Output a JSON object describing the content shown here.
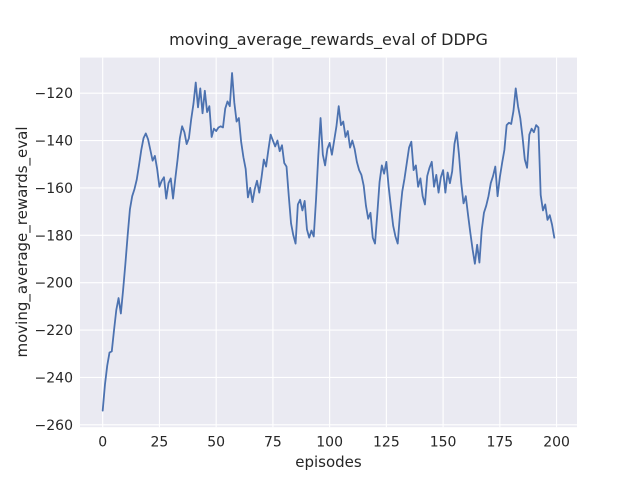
{
  "figure": {
    "background_color": "#ffffff"
  },
  "chart_data": {
    "type": "line",
    "title": "moving_average_rewards_eval of DDPG",
    "xlabel": "episodes",
    "ylabel": "moving_average_rewards_eval",
    "xlim": [
      -10,
      209
    ],
    "ylim": [
      -261,
      -105
    ],
    "xticks": [
      0,
      25,
      50,
      75,
      100,
      125,
      150,
      175,
      200
    ],
    "xticklabels": [
      "0",
      "25",
      "50",
      "75",
      "100",
      "125",
      "150",
      "175",
      "200"
    ],
    "yticks": [
      -120,
      -140,
      -160,
      -180,
      -200,
      -220,
      -240,
      -260
    ],
    "yticklabels": [
      "−120",
      "−140",
      "−160",
      "−180",
      "−200",
      "−220",
      "−240",
      "−260"
    ],
    "grid": true,
    "legend_position": "none",
    "style": {
      "axes_background": "#EAEAF2",
      "grid_color": "#FFFFFF",
      "line_color": "#4C72B0",
      "text_color": "#262626",
      "line_width": 1.8
    },
    "series": [
      {
        "name": "moving_average_rewards_eval",
        "x": [
          0,
          1,
          2,
          3,
          4,
          5,
          6,
          7,
          8,
          9,
          10,
          11,
          12,
          13,
          14,
          15,
          16,
          17,
          18,
          19,
          20,
          21,
          22,
          23,
          24,
          25,
          26,
          27,
          28,
          29,
          30,
          31,
          32,
          33,
          34,
          35,
          36,
          37,
          38,
          39,
          40,
          41,
          42,
          43,
          44,
          45,
          46,
          47,
          48,
          49,
          50,
          51,
          52,
          53,
          54,
          55,
          56,
          57,
          58,
          59,
          60,
          61,
          62,
          63,
          64,
          65,
          66,
          67,
          68,
          69,
          70,
          71,
          72,
          73,
          74,
          75,
          76,
          77,
          78,
          79,
          80,
          81,
          82,
          83,
          84,
          85,
          86,
          87,
          88,
          89,
          90,
          91,
          92,
          93,
          94,
          95,
          96,
          97,
          98,
          99,
          100,
          101,
          102,
          103,
          104,
          105,
          106,
          107,
          108,
          109,
          110,
          111,
          112,
          113,
          114,
          115,
          116,
          117,
          118,
          119,
          120,
          121,
          122,
          123,
          124,
          125,
          126,
          127,
          128,
          129,
          130,
          131,
          132,
          133,
          134,
          135,
          136,
          137,
          138,
          139,
          140,
          141,
          142,
          143,
          144,
          145,
          146,
          147,
          148,
          149,
          150,
          151,
          152,
          153,
          154,
          155,
          156,
          157,
          158,
          159,
          160,
          161,
          162,
          163,
          164,
          165,
          166,
          167,
          168,
          169,
          170,
          171,
          172,
          173,
          174,
          175,
          176,
          177,
          178,
          179,
          180,
          181,
          182,
          183,
          184,
          185,
          186,
          187,
          188,
          189,
          190,
          191,
          192,
          193,
          194,
          195,
          196,
          197,
          198,
          199
        ],
        "y": [
          -254,
          -243,
          -235,
          -229.5,
          -229,
          -220,
          -211.5,
          -206.5,
          -213,
          -203,
          -192,
          -180,
          -169,
          -163.5,
          -160.5,
          -156.5,
          -150.5,
          -144,
          -139,
          -137,
          -139.5,
          -144,
          -148.5,
          -146.5,
          -152,
          -159.5,
          -157,
          -155.5,
          -164.5,
          -158,
          -156,
          -164.5,
          -156,
          -148,
          -139,
          -134,
          -136.5,
          -141.5,
          -139,
          -131,
          -124.5,
          -115.5,
          -126,
          -118,
          -128.5,
          -119,
          -128,
          -125.5,
          -138.5,
          -135,
          -136,
          -134.5,
          -134,
          -134.5,
          -126.5,
          -123.5,
          -125.5,
          -111.5,
          -124,
          -132,
          -130.5,
          -140.5,
          -147,
          -152,
          -164,
          -160,
          -166,
          -160.5,
          -157,
          -162,
          -155.5,
          -148,
          -151,
          -144,
          -137.5,
          -140,
          -142.5,
          -140,
          -144.5,
          -142,
          -149.5,
          -151,
          -163.5,
          -175,
          -180,
          -183.5,
          -167,
          -165,
          -169.5,
          -165.5,
          -177.5,
          -181,
          -178,
          -180.5,
          -165,
          -146.5,
          -130.5,
          -146,
          -150.5,
          -143.5,
          -141,
          -146,
          -140,
          -134,
          -125.5,
          -133.5,
          -132,
          -138.5,
          -136,
          -143,
          -140,
          -143.5,
          -149,
          -152.5,
          -154.5,
          -159,
          -167.5,
          -173,
          -170.5,
          -181,
          -183.5,
          -171,
          -157.5,
          -150.5,
          -154,
          -149,
          -159.5,
          -168,
          -176,
          -180.5,
          -183.5,
          -171,
          -161.5,
          -156,
          -149.5,
          -143,
          -140.5,
          -152.5,
          -150.5,
          -159.5,
          -156,
          -163.5,
          -167,
          -155,
          -151.5,
          -149,
          -159.5,
          -154.5,
          -162,
          -155.5,
          -152.5,
          -162,
          -153.5,
          -158,
          -153,
          -141.5,
          -136.5,
          -146,
          -158,
          -166.5,
          -163.5,
          -171.5,
          -179,
          -186,
          -192,
          -184,
          -191.5,
          -178,
          -170.5,
          -167.5,
          -163.5,
          -158,
          -155,
          -151,
          -163.5,
          -155.5,
          -149.5,
          -144,
          -133.5,
          -132.5,
          -133,
          -127.5,
          -118,
          -125.5,
          -130.5,
          -138.5,
          -148,
          -151.5,
          -137.5,
          -135,
          -136.5,
          -133.5,
          -134.5,
          -163,
          -169.5,
          -167,
          -173.5,
          -171.5,
          -175.5,
          -181
        ]
      }
    ]
  }
}
